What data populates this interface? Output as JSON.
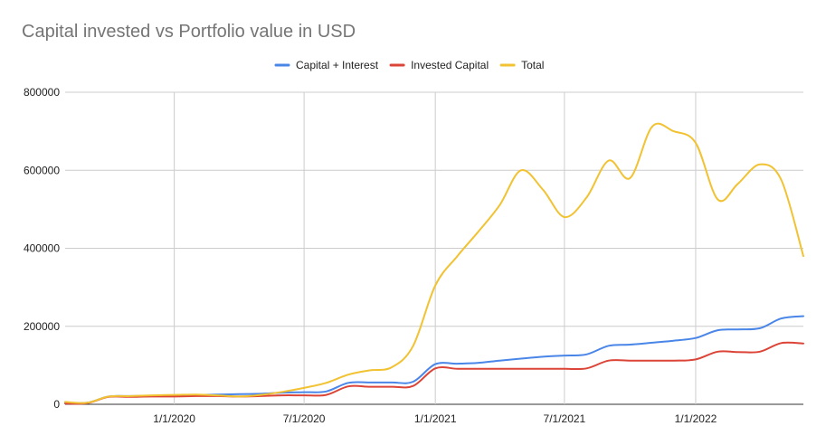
{
  "chart_data": {
    "type": "line",
    "title": "Capital invested vs Portfolio value in USD",
    "xlabel": "",
    "ylabel": "",
    "legend_position": "top",
    "grid": true,
    "x_tick_labels": [
      "1/1/2020",
      "7/1/2020",
      "1/1/2021",
      "7/1/2021",
      "1/1/2022"
    ],
    "y_tick_labels": [
      "0",
      "200000",
      "400000",
      "600000",
      "800000"
    ],
    "ylim": [
      0,
      800000
    ],
    "xlim": [
      "2019-08-01",
      "2022-06-01"
    ],
    "series": [
      {
        "name": "Capital + Interest",
        "color": "#4a86e8",
        "points": [
          [
            "2019-08-01",
            5000
          ],
          [
            "2019-09-01",
            4000
          ],
          [
            "2019-10-01",
            20000
          ],
          [
            "2019-11-01",
            21000
          ],
          [
            "2019-12-01",
            22000
          ],
          [
            "2020-01-01",
            23000
          ],
          [
            "2020-02-01",
            24000
          ],
          [
            "2020-03-01",
            25000
          ],
          [
            "2020-04-01",
            26000
          ],
          [
            "2020-05-01",
            27000
          ],
          [
            "2020-06-01",
            30000
          ],
          [
            "2020-07-01",
            31000
          ],
          [
            "2020-08-01",
            33000
          ],
          [
            "2020-09-01",
            55000
          ],
          [
            "2020-10-01",
            56000
          ],
          [
            "2020-11-01",
            56000
          ],
          [
            "2020-12-01",
            58000
          ],
          [
            "2021-01-01",
            103000
          ],
          [
            "2021-02-01",
            104000
          ],
          [
            "2021-03-01",
            106000
          ],
          [
            "2021-04-01",
            112000
          ],
          [
            "2021-05-01",
            117000
          ],
          [
            "2021-06-01",
            122000
          ],
          [
            "2021-07-01",
            125000
          ],
          [
            "2021-08-01",
            128000
          ],
          [
            "2021-09-01",
            150000
          ],
          [
            "2021-10-01",
            153000
          ],
          [
            "2021-11-01",
            158000
          ],
          [
            "2021-12-01",
            163000
          ],
          [
            "2022-01-01",
            170000
          ],
          [
            "2022-02-01",
            190000
          ],
          [
            "2022-03-01",
            192000
          ],
          [
            "2022-04-01",
            195000
          ],
          [
            "2022-05-01",
            220000
          ],
          [
            "2022-06-01",
            226000
          ]
        ]
      },
      {
        "name": "Invested Capital",
        "color": "#db4437",
        "points": [
          [
            "2019-08-01",
            2000
          ],
          [
            "2019-09-01",
            3000
          ],
          [
            "2019-10-01",
            19000
          ],
          [
            "2019-11-01",
            19000
          ],
          [
            "2019-12-01",
            20000
          ],
          [
            "2020-01-01",
            20000
          ],
          [
            "2020-02-01",
            21000
          ],
          [
            "2020-03-01",
            21000
          ],
          [
            "2020-04-01",
            20000
          ],
          [
            "2020-05-01",
            21000
          ],
          [
            "2020-06-01",
            23000
          ],
          [
            "2020-07-01",
            23000
          ],
          [
            "2020-08-01",
            24000
          ],
          [
            "2020-09-01",
            46000
          ],
          [
            "2020-10-01",
            45000
          ],
          [
            "2020-11-01",
            45000
          ],
          [
            "2020-12-01",
            47000
          ],
          [
            "2021-01-01",
            92000
          ],
          [
            "2021-02-01",
            91000
          ],
          [
            "2021-03-01",
            91000
          ],
          [
            "2021-04-01",
            91000
          ],
          [
            "2021-05-01",
            91000
          ],
          [
            "2021-06-01",
            91000
          ],
          [
            "2021-07-01",
            91000
          ],
          [
            "2021-08-01",
            92000
          ],
          [
            "2021-09-01",
            112000
          ],
          [
            "2021-10-01",
            112000
          ],
          [
            "2021-11-01",
            112000
          ],
          [
            "2021-12-01",
            112000
          ],
          [
            "2022-01-01",
            115000
          ],
          [
            "2022-02-01",
            135000
          ],
          [
            "2022-03-01",
            134000
          ],
          [
            "2022-04-01",
            135000
          ],
          [
            "2022-05-01",
            157000
          ],
          [
            "2022-06-01",
            156000
          ]
        ]
      },
      {
        "name": "Total",
        "color": "#f1c232",
        "points": [
          [
            "2019-08-01",
            6000
          ],
          [
            "2019-09-01",
            4000
          ],
          [
            "2019-10-01",
            20000
          ],
          [
            "2019-11-01",
            21000
          ],
          [
            "2019-12-01",
            23000
          ],
          [
            "2020-01-01",
            24000
          ],
          [
            "2020-02-01",
            25000
          ],
          [
            "2020-03-01",
            23000
          ],
          [
            "2020-04-01",
            20000
          ],
          [
            "2020-05-01",
            24000
          ],
          [
            "2020-06-01",
            32000
          ],
          [
            "2020-07-01",
            42000
          ],
          [
            "2020-08-01",
            55000
          ],
          [
            "2020-09-01",
            76000
          ],
          [
            "2020-10-01",
            87000
          ],
          [
            "2020-11-01",
            95000
          ],
          [
            "2020-12-01",
            150000
          ],
          [
            "2021-01-01",
            305000
          ],
          [
            "2021-02-01",
            380000
          ],
          [
            "2021-03-01",
            440000
          ],
          [
            "2021-04-01",
            510000
          ],
          [
            "2021-05-01",
            600000
          ],
          [
            "2021-06-01",
            550000
          ],
          [
            "2021-07-01",
            480000
          ],
          [
            "2021-08-01",
            530000
          ],
          [
            "2021-09-01",
            625000
          ],
          [
            "2021-10-01",
            580000
          ],
          [
            "2021-11-01",
            712000
          ],
          [
            "2021-12-01",
            700000
          ],
          [
            "2022-01-01",
            670000
          ],
          [
            "2022-02-01",
            525000
          ],
          [
            "2022-03-01",
            565000
          ],
          [
            "2022-04-01",
            615000
          ],
          [
            "2022-05-01",
            575000
          ],
          [
            "2022-06-01",
            380000
          ]
        ]
      }
    ]
  }
}
